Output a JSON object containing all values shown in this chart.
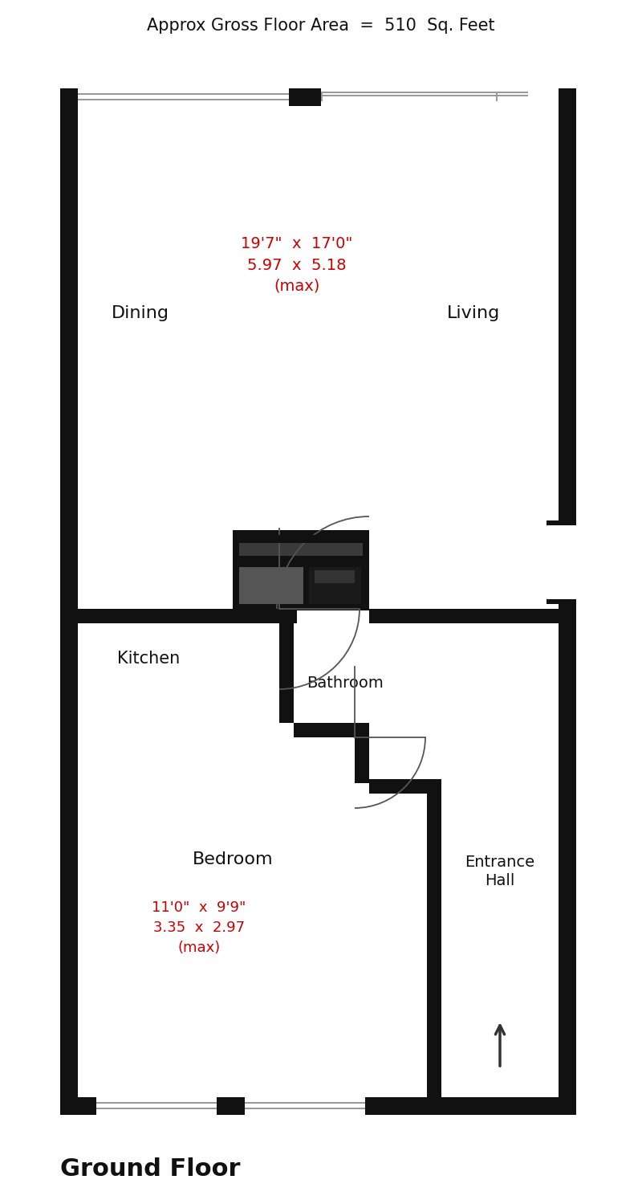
{
  "title_top": "Approx Gross Floor Area  =  510  Sq. Feet",
  "title_bottom": "Ground Floor",
  "room_labels": {
    "dining": "Dining",
    "living": "Living",
    "kitchen": "Kitchen",
    "bathroom": "Bathroom",
    "bedroom": "Bedroom",
    "entrance": "Entrance\nHall"
  },
  "dim_labels": {
    "living_dining": "19'7\"  x  17'0\"\n5.97  x  5.18\n(max)",
    "bedroom": "11'0\"  x  9'9\"\n3.35  x  2.97\n(max)"
  },
  "colors": {
    "wall": "#111111",
    "white": "#ffffff",
    "bg": "#ffffff",
    "gray_line": "#999999",
    "red_text": "#cc0000",
    "black_text": "#111111",
    "furniture_dark": "#111111",
    "furniture_mid": "#444444",
    "door_arc": "#555555"
  }
}
